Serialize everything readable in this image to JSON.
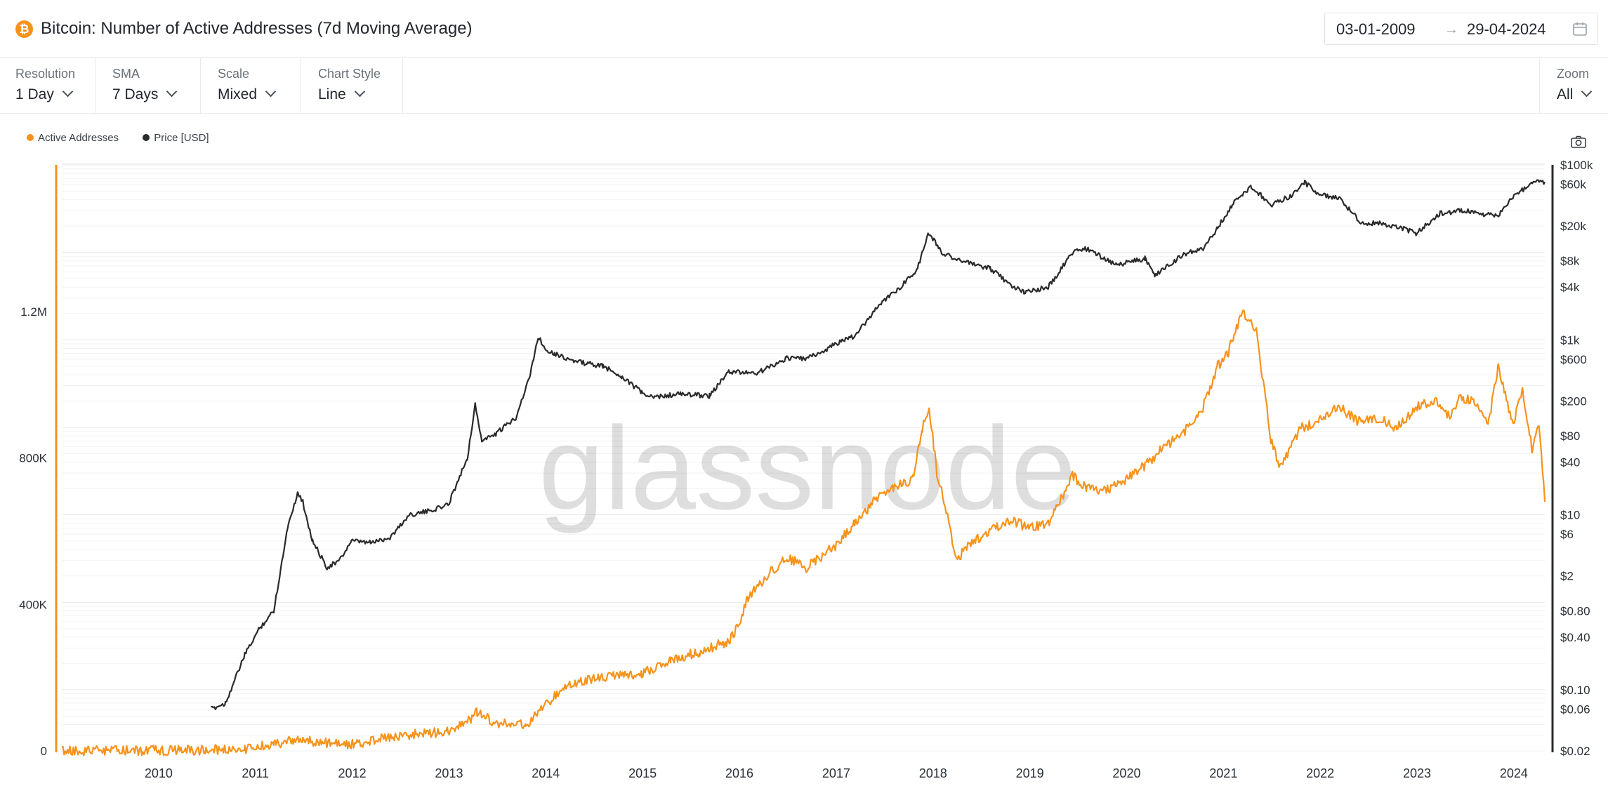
{
  "header": {
    "title": "Bitcoin: Number of Active Addresses (7d Moving Average)",
    "logo_glyph": "₿",
    "date_from": "03-01-2009",
    "date_arrow": "→",
    "date_to": "29-04-2024"
  },
  "toolbar": {
    "resolution": {
      "label": "Resolution",
      "value": "1 Day"
    },
    "sma": {
      "label": "SMA",
      "value": "7 Days"
    },
    "scale": {
      "label": "Scale",
      "value": "Mixed"
    },
    "chart_style": {
      "label": "Chart Style",
      "value": "Line"
    },
    "zoom": {
      "label": "Zoom",
      "value": "All"
    }
  },
  "legend": {
    "active_addresses": "Active Addresses",
    "price": "Price [USD]"
  },
  "watermark": "glassnode",
  "colors": {
    "active_addresses": "#f7931a",
    "price": "#2a2a2a",
    "btc_brand": "#f7931a"
  },
  "icons": [
    "bitcoin-logo",
    "calendar-icon",
    "chevron-down-icon",
    "camera-icon"
  ],
  "chart_data": {
    "type": "line",
    "title": "Bitcoin: Number of Active Addresses (7d Moving Average)",
    "x_ticks": [
      "2010",
      "2011",
      "2012",
      "2013",
      "2014",
      "2015",
      "2016",
      "2017",
      "2018",
      "2019",
      "2020",
      "2021",
      "2022",
      "2023",
      "2024"
    ],
    "xlim": [
      2009.01,
      2024.33
    ],
    "left_axis": {
      "scale": "linear",
      "ylim": [
        0,
        1600000
      ],
      "ticks": [
        0,
        400000,
        800000,
        1200000
      ],
      "tick_labels": [
        "0",
        "400K",
        "800K",
        "1.2M"
      ]
    },
    "right_axis": {
      "scale": "log",
      "ylim": [
        0.02,
        100000
      ],
      "ticks": [
        0.02,
        0.06,
        0.1,
        0.4,
        0.8,
        2,
        6,
        10,
        40,
        80,
        200,
        600,
        1000,
        4000,
        8000,
        20000,
        60000,
        100000
      ],
      "tick_labels": [
        "$0.02",
        "$0.06",
        "$0.10",
        "$0.40",
        "$0.80",
        "$2",
        "$6",
        "$10",
        "$40",
        "$80",
        "$200",
        "$600",
        "$1k",
        "$4k",
        "$8k",
        "$20k",
        "$60k",
        "$100k"
      ]
    },
    "grid": true,
    "legend_position": "top-left",
    "series": [
      {
        "name": "Active Addresses",
        "axis": "left",
        "x": [
          2009.01,
          2009.5,
          2010.0,
          2010.5,
          2010.9,
          2011.2,
          2011.4,
          2011.5,
          2011.7,
          2012.0,
          2012.3,
          2012.6,
          2012.8,
          2013.0,
          2013.2,
          2013.3,
          2013.5,
          2013.8,
          2013.95,
          2014.1,
          2014.3,
          2014.6,
          2015.0,
          2015.3,
          2015.6,
          2015.9,
          2016.0,
          2016.1,
          2016.3,
          2016.5,
          2016.7,
          2016.9,
          2017.0,
          2017.2,
          2017.4,
          2017.6,
          2017.8,
          2017.9,
          2017.97,
          2018.05,
          2018.15,
          2018.25,
          2018.4,
          2018.6,
          2018.8,
          2019.0,
          2019.2,
          2019.45,
          2019.6,
          2019.8,
          2020.0,
          2020.2,
          2020.4,
          2020.6,
          2020.8,
          2020.95,
          2021.05,
          2021.2,
          2021.35,
          2021.5,
          2021.6,
          2021.8,
          2022.0,
          2022.2,
          2022.4,
          2022.6,
          2022.8,
          2023.0,
          2023.2,
          2023.35,
          2023.45,
          2023.6,
          2023.75,
          2023.85,
          2024.0,
          2024.1,
          2024.2,
          2024.27,
          2024.33
        ],
        "values": [
          500,
          800,
          1200,
          2500,
          6000,
          18000,
          28000,
          30000,
          22000,
          18000,
          32000,
          45000,
          48000,
          55000,
          80000,
          105000,
          75000,
          70000,
          110000,
          150000,
          185000,
          200000,
          210000,
          250000,
          270000,
          300000,
          340000,
          420000,
          480000,
          530000,
          500000,
          540000,
          560000,
          620000,
          680000,
          720000,
          740000,
          880000,
          940000,
          760000,
          650000,
          520000,
          570000,
          600000,
          630000,
          610000,
          620000,
          750000,
          720000,
          710000,
          740000,
          780000,
          830000,
          870000,
          940000,
          1050000,
          1080000,
          1200000,
          1150000,
          850000,
          770000,
          880000,
          900000,
          940000,
          900000,
          910000,
          880000,
          940000,
          960000,
          910000,
          960000,
          960000,
          900000,
          1050000,
          890000,
          980000,
          820000,
          900000,
          680000
        ]
      },
      {
        "name": "Price [USD]",
        "axis": "right",
        "x": [
          2010.55,
          2010.7,
          2010.9,
          2011.05,
          2011.2,
          2011.35,
          2011.45,
          2011.5,
          2011.6,
          2011.75,
          2011.88,
          2012.0,
          2012.2,
          2012.4,
          2012.6,
          2012.8,
          2013.0,
          2013.2,
          2013.28,
          2013.35,
          2013.5,
          2013.7,
          2013.85,
          2013.93,
          2014.0,
          2014.1,
          2014.3,
          2014.6,
          2014.8,
          2015.0,
          2015.1,
          2015.4,
          2015.7,
          2015.9,
          2016.2,
          2016.5,
          2016.7,
          2016.9,
          2017.0,
          2017.2,
          2017.45,
          2017.7,
          2017.85,
          2017.96,
          2018.1,
          2018.3,
          2018.6,
          2018.85,
          2018.95,
          2019.2,
          2019.45,
          2019.6,
          2019.9,
          2020.2,
          2020.3,
          2020.6,
          2020.8,
          2020.95,
          2021.1,
          2021.3,
          2021.5,
          2021.7,
          2021.85,
          2022.0,
          2022.2,
          2022.45,
          2022.6,
          2022.85,
          2023.0,
          2023.25,
          2023.5,
          2023.7,
          2023.85,
          2024.0,
          2024.2,
          2024.33
        ],
        "values": [
          0.06,
          0.07,
          0.25,
          0.5,
          0.8,
          8,
          18,
          14,
          5,
          2.5,
          3,
          5,
          4.8,
          5.5,
          10,
          11,
          13,
          45,
          180,
          70,
          85,
          130,
          400,
          1100,
          800,
          700,
          570,
          500,
          380,
          250,
          220,
          240,
          230,
          430,
          420,
          620,
          610,
          760,
          900,
          1100,
          2500,
          4300,
          6500,
          17000,
          10000,
          8000,
          6500,
          4000,
          3500,
          4000,
          10000,
          11000,
          7200,
          8500,
          5500,
          9500,
          11000,
          19000,
          35000,
          57000,
          35000,
          44000,
          63000,
          46000,
          42000,
          21000,
          22000,
          19000,
          16500,
          28000,
          30000,
          27000,
          26000,
          43000,
          63000,
          64000
        ]
      }
    ]
  }
}
